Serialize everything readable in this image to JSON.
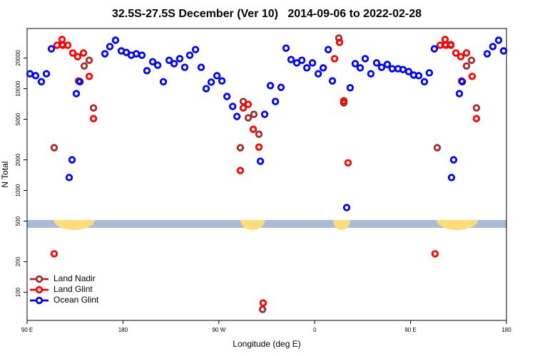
{
  "chart_data": {
    "type": "scatter",
    "title": "32.5S-27.5S December (Ver 10)   2014-09-06 to 2022-02-28",
    "xlabel": "Longitude (deg E)",
    "ylabel": "N Total",
    "xlim": [
      90,
      540
    ],
    "ylim": [
      53,
      39000
    ],
    "log_y": true,
    "legend": "bottomleft",
    "xticks": [
      {
        "value": 90,
        "label": "90 E"
      },
      180,
      {
        "value": 270,
        "label": "90 W"
      },
      {
        "value": 360,
        "label": "0"
      },
      {
        "value": 450,
        "label": "90 E"
      },
      {
        "value": 540,
        "label": "180"
      }
    ],
    "yticks": [
      100,
      200,
      500,
      1000,
      2000,
      5000,
      10000,
      20000
    ],
    "series": [
      {
        "name": "Land Nadir",
        "color": "#a52a2a",
        "x": [
          115.4,
          122.8,
          138.2,
          143.6,
          148.3,
          152.3,
          290.2,
          292.9,
          297.6,
          302.9,
          307.6,
          311,
          382.6,
          387.3,
          475,
          482.4,
          487.8,
          497.8,
          502.5,
          507.2,
          511.8
        ],
        "values": [
          2630,
          27100,
          11900,
          16700,
          19000,
          6470,
          2630,
          7480,
          5170,
          5600,
          3570,
          68,
          31400,
          7250,
          2630,
          27100,
          27100,
          11900,
          16700,
          19000,
          6470
        ]
      },
      {
        "name": "Land Glint",
        "color": "#ff0000",
        "x": [
          115.4,
          118.1,
          122.8,
          123.5,
          128.2,
          132.9,
          137.5,
          142.9,
          148.3,
          152.3,
          290.2,
          292.9,
          297.6,
          302.3,
          307.6,
          311.6,
          378.6,
          383.3,
          387.3,
          391.3,
          473,
          477.7,
          482.4,
          483.1,
          487.8,
          492.5,
          497.1,
          502.5,
          507.8,
          511.8
        ],
        "values": [
          239,
          26700,
          30400,
          26700,
          26700,
          22400,
          20600,
          22400,
          13200,
          5080,
          1570,
          6470,
          7020,
          3990,
          2670,
          78.5,
          19700,
          28500,
          7600,
          1870,
          239,
          26700,
          30400,
          26700,
          26700,
          22400,
          20600,
          22400,
          13200,
          5080
        ]
      },
      {
        "name": "Ocean Glint",
        "color": "#0000ff",
        "x": [
          92.7,
          98,
          103.4,
          108.1,
          112.8,
          129.5,
          132.2,
          136.2,
          139.6,
          163,
          167.7,
          173,
          178.4,
          183.1,
          187.8,
          192.5,
          197.8,
          202.5,
          207.9,
          212.6,
          217.9,
          223.3,
          228,
          233.3,
          238,
          242.7,
          248.1,
          253.4,
          258.1,
          262.8,
          268.2,
          272.9,
          277.6,
          283,
          287,
          309,
          313,
          318.4,
          323.1,
          328.4,
          333.1,
          337.8,
          343.2,
          347.9,
          352.6,
          357.9,
          363.3,
          368,
          372.7,
          376.6,
          390,
          393.3,
          398,
          402.7,
          407.4,
          412.7,
          418.1,
          422.8,
          428.1,
          432.8,
          438.2,
          442.9,
          448.2,
          452.9,
          457.6,
          463,
          467.6,
          472.3,
          488.4,
          490.4,
          495.8,
          498.5,
          521.9,
          527.2,
          532.6,
          537.3
        ],
        "values": [
          14000,
          13400,
          11700,
          14000,
          24600,
          1340,
          2000,
          8940,
          11700,
          22000,
          25900,
          29900,
          23500,
          22700,
          21300,
          22000,
          21300,
          15000,
          18400,
          17000,
          11700,
          19000,
          17600,
          19700,
          16200,
          21300,
          24200,
          16200,
          10000,
          11600,
          13400,
          11900,
          8380,
          6690,
          5330,
          1940,
          5600,
          10700,
          7480,
          10300,
          25000,
          19300,
          17900,
          19000,
          16000,
          17900,
          14000,
          16000,
          24200,
          11900,
          680,
          10200,
          17600,
          16000,
          19700,
          14000,
          17900,
          16200,
          17300,
          15700,
          15700,
          15400,
          14700,
          13600,
          13400,
          11700,
          14300,
          24600,
          1340,
          2000,
          8940,
          11700,
          22000,
          25900,
          29900,
          23500
        ]
      }
    ]
  }
}
